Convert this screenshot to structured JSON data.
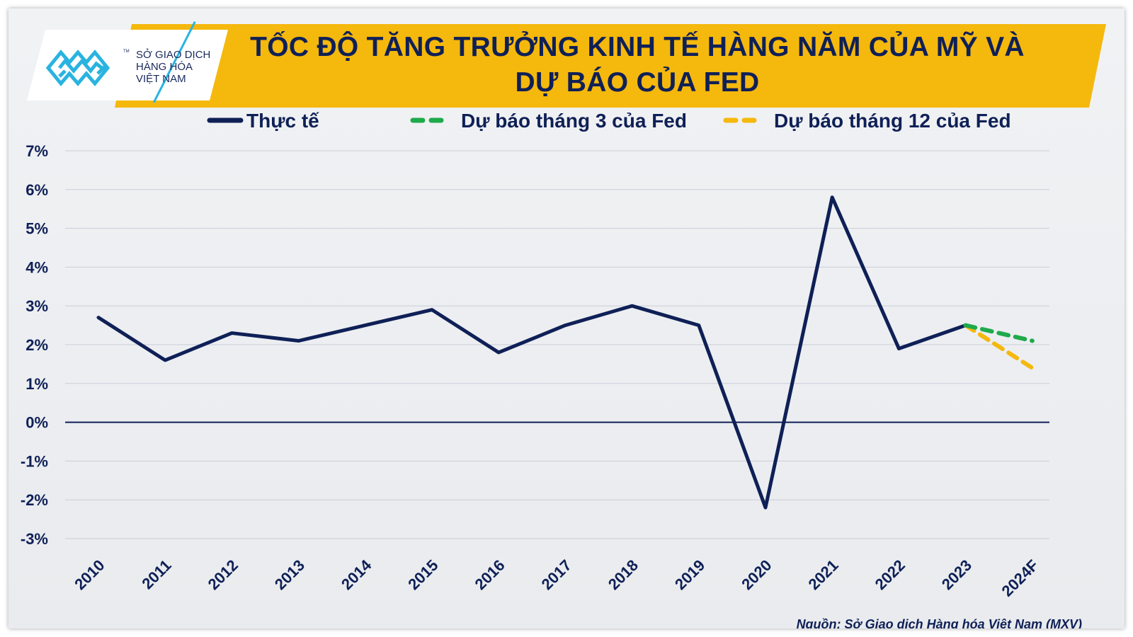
{
  "header": {
    "title_line1": "TỐC ĐỘ TĂNG TRƯỞNG KINH TẾ HÀNG NĂM CỦA MỸ VÀ",
    "title_line2": "DỰ BÁO CỦA FED",
    "logo_line1": "SỞ GIAO DỊCH",
    "logo_line2": "HÀNG HÓA",
    "logo_line3": "VIỆT NAM",
    "logo_tm": "TM"
  },
  "source": "Nguồn: Sở Giao dịch Hàng hóa Việt Nam (MXV)",
  "colors": {
    "actual": "#0f2057",
    "march_forecast": "#1faa4b",
    "december_forecast": "#f5b80c",
    "banner": "#f5b80c"
  },
  "chart_data": {
    "type": "line",
    "categories": [
      "2010",
      "2011",
      "2012",
      "2013",
      "2014",
      "2015",
      "2016",
      "2017",
      "2018",
      "2019",
      "2020",
      "2021",
      "2022",
      "2023",
      "2024F"
    ],
    "y_ticks": [
      "7%",
      "6%",
      "5%",
      "4%",
      "3%",
      "2%",
      "1%",
      "0%",
      "-1%",
      "-2%",
      "-3%"
    ],
    "ylim": [
      -3,
      7
    ],
    "y_unit": "%",
    "grid": true,
    "legend_position": "top",
    "series": [
      {
        "name": "Thực tế",
        "style": "solid",
        "values": [
          2.7,
          1.6,
          2.3,
          2.1,
          2.5,
          2.9,
          1.8,
          2.5,
          3.0,
          2.5,
          -2.2,
          5.8,
          1.9,
          2.5,
          null
        ]
      },
      {
        "name": "Dự báo tháng 3 của Fed",
        "style": "dashed",
        "values": [
          null,
          null,
          null,
          null,
          null,
          null,
          null,
          null,
          null,
          null,
          null,
          null,
          null,
          2.5,
          2.1
        ]
      },
      {
        "name": "Dự báo tháng 12 của Fed",
        "style": "dashed",
        "values": [
          null,
          null,
          null,
          null,
          null,
          null,
          null,
          null,
          null,
          null,
          null,
          null,
          null,
          2.5,
          1.4
        ]
      }
    ]
  }
}
